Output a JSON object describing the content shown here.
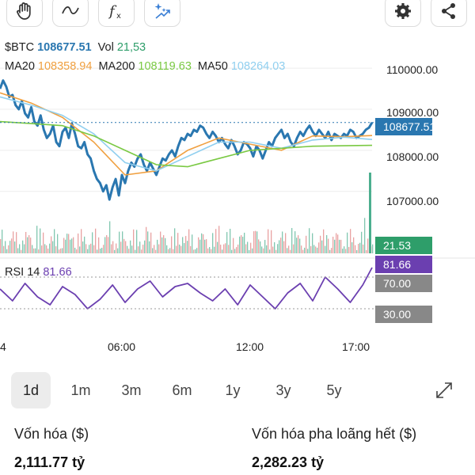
{
  "legend": {
    "symbol": "$BTC",
    "price": "108677.51",
    "vol_label": "Vol",
    "vol_value": "21,53",
    "ma20_label": "MA20",
    "ma20_value": "108358.94",
    "ma200_label": "MA200",
    "ma200_value": "108119.63",
    "ma50_label": "MA50",
    "ma50_value": "108264.03"
  },
  "rsi_legend": {
    "label": "RSI 14",
    "value": "81.66"
  },
  "badges": {
    "price": "108677.51",
    "volume": "21.53",
    "rsi": "81.66",
    "rsi_upper": "70.00",
    "rsi_lower": "30.00"
  },
  "colors": {
    "price_line": "#2a77b0",
    "ma20": "#f0a040",
    "ma200": "#7ac943",
    "ma50": "#90cfef",
    "rsi": "#6b3fb0",
    "volume_up": "#4caf8f",
    "volume_down": "#e07a7a",
    "badge_price": "#2a77b0",
    "badge_volume": "#2e9e6a",
    "badge_rsi": "#6b3fb0",
    "badge_gray": "#888888"
  },
  "toolbar": {
    "icons": [
      "hand-icon",
      "curve-icon",
      "function-icon",
      "magic-icon",
      "settings-icon",
      "share-icon"
    ]
  },
  "timeframes": {
    "items": [
      "1d",
      "1m",
      "3m",
      "6m",
      "1y",
      "3y",
      "5y"
    ],
    "active": "1d"
  },
  "stats": {
    "market_cap_label": "Vốn hóa ($)",
    "market_cap_value": "2,111.77 tỷ",
    "fdv_label": "Vốn hóa pha loãng hết ($)",
    "fdv_value": "2,282.23 tỷ"
  },
  "chart_data": {
    "type": "line",
    "y_ticks": [
      "110000.00",
      "109000.00",
      "108000.00",
      "107000.00"
    ],
    "x_ticks": [
      "4",
      "06:00",
      "12:00",
      "17:00"
    ],
    "ylim": [
      106300,
      110350
    ],
    "last_price": 108677.51,
    "series": [
      {
        "name": "$BTC",
        "x": [
          0,
          1,
          2,
          3,
          4,
          5,
          6,
          7,
          8,
          9,
          10,
          11,
          12,
          13,
          14,
          15,
          16,
          17,
          18,
          19,
          20,
          21,
          22,
          23,
          24,
          25,
          26,
          27,
          28,
          29,
          30,
          31,
          32,
          33,
          34,
          35,
          36,
          37,
          38,
          39,
          40,
          41,
          42,
          43,
          44,
          45,
          46,
          47,
          48,
          49,
          50,
          51,
          52,
          53,
          54,
          55,
          56,
          57,
          58,
          59,
          60,
          61,
          62,
          63,
          64,
          65,
          66,
          67,
          68,
          69,
          70,
          71,
          72,
          73,
          74,
          75,
          76,
          77,
          78,
          79,
          80,
          81,
          82,
          83,
          84,
          85,
          86,
          87,
          88,
          89,
          90,
          91,
          92,
          93,
          94,
          95,
          96,
          97,
          98,
          99,
          100,
          101,
          102,
          103,
          104,
          105,
          106,
          107,
          108,
          109,
          110,
          111,
          112,
          113,
          114,
          115,
          116,
          117,
          118,
          119
        ],
        "values": [
          109500,
          109700,
          109550,
          109300,
          109350,
          109100,
          109000,
          109200,
          108900,
          108800,
          109050,
          108700,
          108600,
          108850,
          108500,
          108300,
          108400,
          108600,
          108200,
          108100,
          108450,
          108550,
          108300,
          108650,
          108400,
          108100,
          108050,
          108200,
          107900,
          107800,
          107500,
          107300,
          107200,
          107000,
          107150,
          106800,
          107100,
          107300,
          106900,
          107400,
          107200,
          107500,
          107700,
          107600,
          107800,
          107900,
          107650,
          107500,
          107700,
          107550,
          107400,
          107600,
          107800,
          107750,
          107900,
          108000,
          107850,
          108100,
          108300,
          108250,
          108400,
          108350,
          108500,
          108450,
          108600,
          108550,
          108400,
          108300,
          108450,
          108350,
          108200,
          108300,
          108150,
          108050,
          108250,
          108100,
          107900,
          108000,
          108200,
          108150,
          108050,
          107850,
          108100,
          108000,
          107800,
          108000,
          108200,
          108100,
          108300,
          108400,
          108500,
          108300,
          108400,
          108200,
          108100,
          108300,
          108450,
          108350,
          108500,
          108600,
          108450,
          108350,
          108500,
          108400,
          108300,
          108450,
          108250,
          108400,
          108350,
          108300,
          108400,
          108350,
          108500,
          108450,
          108300,
          108350,
          108400,
          108500,
          108550,
          108677
        ]
      },
      {
        "name": "MA20",
        "x": [
          0,
          10,
          20,
          30,
          40,
          50,
          60,
          70,
          80,
          90,
          100,
          110,
          119
        ],
        "values": [
          109400,
          109150,
          108800,
          108200,
          107400,
          107500,
          108000,
          108300,
          108150,
          108000,
          108350,
          108330,
          108359
        ]
      },
      {
        "name": "MA50",
        "x": [
          0,
          10,
          20,
          30,
          40,
          50,
          60,
          70,
          80,
          90,
          100,
          110,
          119
        ],
        "values": [
          109300,
          109100,
          108850,
          108400,
          107700,
          107500,
          107850,
          108200,
          108200,
          108050,
          108250,
          108320,
          108264
        ]
      },
      {
        "name": "MA200",
        "x": [
          0,
          10,
          20,
          30,
          40,
          50,
          60,
          70,
          80,
          90,
          100,
          110,
          119
        ],
        "values": [
          108700,
          108650,
          108600,
          108350,
          108000,
          107650,
          107600,
          107800,
          108000,
          108050,
          108100,
          108110,
          108120
        ]
      },
      {
        "name": "RSI 14",
        "x": [
          0,
          4,
          8,
          12,
          16,
          20,
          24,
          28,
          32,
          36,
          40,
          44,
          48,
          52,
          56,
          60,
          64,
          68,
          72,
          76,
          80,
          84,
          88,
          92,
          96,
          100,
          104,
          108,
          112,
          116,
          119
        ],
        "values": [
          55,
          40,
          62,
          45,
          35,
          58,
          48,
          30,
          42,
          60,
          38,
          55,
          65,
          45,
          58,
          62,
          50,
          40,
          55,
          35,
          60,
          45,
          30,
          50,
          62,
          40,
          70,
          55,
          38,
          60,
          82
        ]
      }
    ],
    "rsi_levels": [
      70,
      30
    ]
  }
}
